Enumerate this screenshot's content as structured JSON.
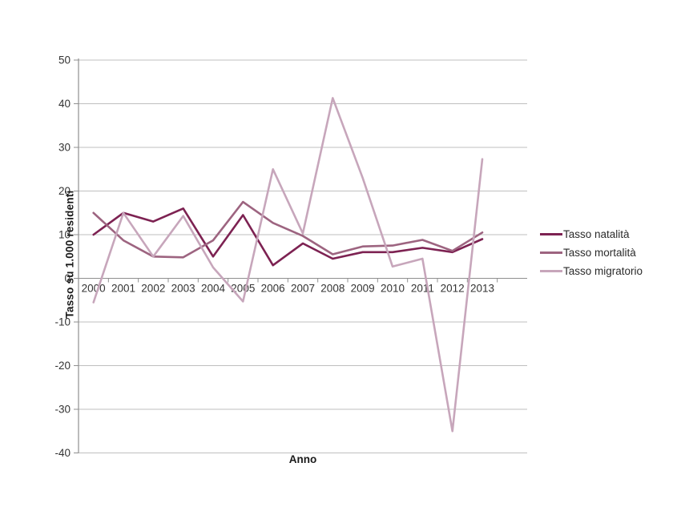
{
  "figure": {
    "background_color": "#ffffff",
    "axis_color": "#8f8f8f",
    "gridline_color": "#bfbfbf",
    "tick_label_color": "#333333"
  },
  "chart_data": {
    "type": "line",
    "title": "",
    "xlabel": "Anno",
    "ylabel": "Tasso su 1.000 residenti",
    "ylim": [
      -40,
      50
    ],
    "yticks": [
      50,
      40,
      30,
      20,
      10,
      0,
      -10,
      -20,
      -30,
      -40
    ],
    "grid": "horizontal",
    "legend_position": "right",
    "categories": [
      "2000",
      "2001",
      "2002",
      "2003",
      "2004",
      "2005",
      "2006",
      "2007",
      "2008",
      "2009",
      "2010",
      "2011",
      "2012",
      "2013"
    ],
    "series": [
      {
        "name": "Tasso natalità",
        "color": "#7D2252",
        "values": [
          10,
          15,
          13,
          16,
          5,
          14.5,
          3,
          8,
          4.5,
          6,
          6,
          7,
          6,
          9
        ]
      },
      {
        "name": "Tasso mortalità",
        "color": "#9D6480",
        "values": [
          15,
          8.7,
          5,
          4.8,
          8.7,
          17.5,
          12.7,
          9.7,
          5.5,
          7.3,
          7.5,
          8.8,
          6.3,
          10.5
        ]
      },
      {
        "name": "Tasso migratorio",
        "color": "#C7A6BB",
        "values": [
          -5.5,
          15,
          5,
          14.3,
          2.5,
          -5.3,
          25,
          10.3,
          41.3,
          23,
          2.7,
          4.5,
          -35,
          27.3
        ]
      }
    ]
  }
}
